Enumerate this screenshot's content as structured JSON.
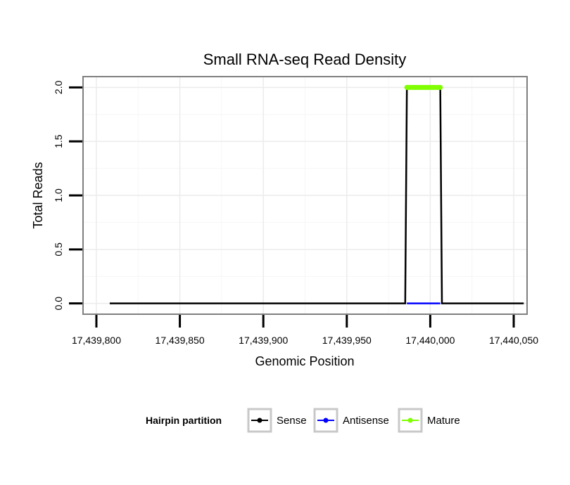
{
  "chart_data": {
    "type": "line",
    "title": "Small RNA-seq Read Density",
    "xlabel": "Genomic Position",
    "ylabel": "Total Reads",
    "xlim": [
      17439792,
      17440058
    ],
    "ylim": [
      -0.1,
      2.1
    ],
    "x_ticks": [
      17439800,
      17439850,
      17439900,
      17439950,
      17440000,
      17440050
    ],
    "x_tick_labels": [
      "17,439,800",
      "17,439,850",
      "17,439,900",
      "17,439,950",
      "17,440,000",
      "17,440,050"
    ],
    "y_ticks": [
      0,
      0.5,
      1,
      1.5,
      2
    ],
    "y_tick_labels": [
      "0.0",
      "0.5",
      "1.0",
      "1.5",
      "2.0"
    ],
    "grid": true,
    "legend": {
      "title": "Hairpin partition",
      "position": "bottom",
      "entries": [
        "Sense",
        "Antisense",
        "Mature"
      ]
    },
    "series": [
      {
        "name": "Sense",
        "color": "#000000",
        "x": [
          17439808,
          17439985,
          17439986,
          17440006,
          17440007,
          17440056
        ],
        "y": [
          0,
          0,
          2,
          2,
          0,
          0
        ]
      },
      {
        "name": "Antisense",
        "color": "#0000ff",
        "x": [
          17439986,
          17440006
        ],
        "y": [
          0,
          0
        ]
      },
      {
        "name": "Mature",
        "color": "#7fff00",
        "x": [
          17439986,
          17440006
        ],
        "y": [
          2,
          2
        ]
      }
    ]
  }
}
